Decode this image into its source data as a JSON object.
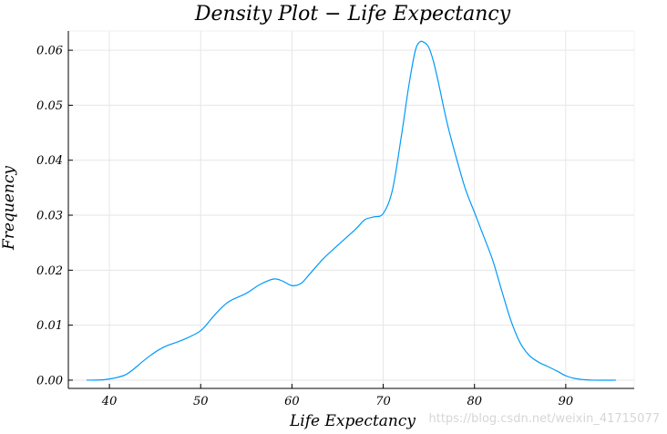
{
  "chart_data": {
    "type": "line",
    "title": "Density Plot − Life Expectancy",
    "xlabel": "Life Expectancy",
    "ylabel": "Frequency",
    "xlim": [
      35.5,
      97.5
    ],
    "ylim": [
      -0.0015,
      0.0635
    ],
    "xticks": [
      40,
      50,
      60,
      70,
      80,
      90
    ],
    "yticks": [
      0.0,
      0.01,
      0.02,
      0.03,
      0.04,
      0.05,
      0.06
    ],
    "xtick_labels": [
      "40",
      "50",
      "60",
      "70",
      "80",
      "90"
    ],
    "ytick_labels": [
      "0.00",
      "0.01",
      "0.02",
      "0.03",
      "0.04",
      "0.05",
      "0.06"
    ],
    "grid": true,
    "legend": "none",
    "series": [
      {
        "color": "#009AFA",
        "x": [
          37.5,
          39.5,
          41.5,
          42.5,
          43.5,
          44.5,
          45.5,
          46.5,
          48.0,
          50.0,
          51.5,
          53.0,
          55.0,
          56.5,
          58.0,
          59.0,
          60.0,
          61.0,
          62.0,
          63.5,
          65.0,
          67.0,
          68.0,
          69.0,
          70.0,
          71.0,
          72.0,
          72.8,
          73.5,
          74.0,
          74.5,
          75.0,
          75.5,
          76.0,
          77.0,
          78.0,
          79.0,
          80.0,
          81.0,
          82.0,
          83.0,
          84.0,
          85.0,
          86.0,
          87.0,
          88.0,
          89.0,
          90.0,
          91.0,
          92.0,
          93.0,
          95.5
        ],
        "y": [
          0.0,
          0.0001,
          0.0008,
          0.0018,
          0.0032,
          0.0045,
          0.0056,
          0.0064,
          0.0073,
          0.009,
          0.0118,
          0.0142,
          0.0158,
          0.0174,
          0.0184,
          0.018,
          0.0172,
          0.0176,
          0.0194,
          0.0222,
          0.0245,
          0.0275,
          0.0292,
          0.0297,
          0.0303,
          0.0345,
          0.0445,
          0.0535,
          0.0598,
          0.0615,
          0.0614,
          0.0605,
          0.058,
          0.0545,
          0.0468,
          0.0405,
          0.0348,
          0.0305,
          0.0262,
          0.0218,
          0.0162,
          0.0108,
          0.0068,
          0.0045,
          0.0033,
          0.0025,
          0.0017,
          0.0008,
          0.0003,
          0.0001,
          0.0,
          0.0
        ]
      }
    ]
  },
  "watermark": "https://blog.csdn.net/weixin_41715077"
}
